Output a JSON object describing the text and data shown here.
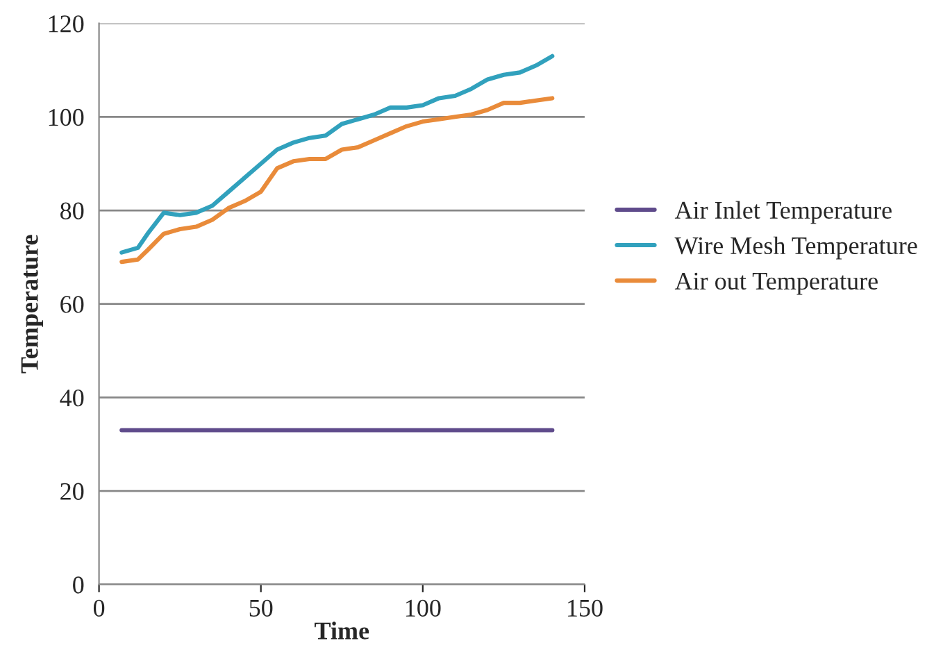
{
  "chart_data": {
    "type": "line",
    "xlabel": "Time",
    "ylabel": "Temperature",
    "xlim": [
      0,
      150
    ],
    "xticks": [
      0,
      50,
      100,
      150
    ],
    "ylim": [
      0,
      120
    ],
    "yticks": [
      0,
      20,
      40,
      60,
      80,
      100,
      120
    ],
    "grid": "y",
    "legend": "right",
    "marker": "none",
    "line_style": "solid",
    "series": [
      {
        "name": "Air Inlet Temperature",
        "color": "#5f4b8b",
        "x": [
          7,
          140
        ],
        "values": [
          33,
          33
        ]
      },
      {
        "name": "Wire Mesh Temperature",
        "color": "#31a1bd",
        "x": [
          7,
          12,
          15,
          20,
          25,
          30,
          35,
          40,
          45,
          50,
          55,
          60,
          65,
          70,
          75,
          80,
          85,
          90,
          95,
          100,
          105,
          110,
          115,
          120,
          125,
          130,
          135,
          140
        ],
        "values": [
          71,
          72,
          75,
          79.5,
          79,
          79.5,
          81,
          84,
          87,
          90,
          93,
          94.5,
          95.5,
          96,
          98.5,
          99.5,
          100.5,
          102,
          102,
          102.5,
          104,
          104.5,
          106,
          108,
          109,
          109.5,
          111,
          113
        ]
      },
      {
        "name": "Air out Temperature",
        "color": "#e98b3a",
        "x": [
          7,
          12,
          15,
          20,
          25,
          30,
          35,
          40,
          45,
          50,
          55,
          60,
          65,
          70,
          75,
          80,
          85,
          90,
          95,
          100,
          105,
          110,
          115,
          120,
          125,
          130,
          135,
          140
        ],
        "values": [
          69,
          69.5,
          71.5,
          75,
          76,
          76.5,
          78,
          80.5,
          82,
          84,
          89,
          90.5,
          91,
          91,
          93,
          93.5,
          95,
          96.5,
          98,
          99,
          99.5,
          100,
          100.5,
          101.5,
          103,
          103,
          103.5,
          104
        ]
      }
    ]
  }
}
